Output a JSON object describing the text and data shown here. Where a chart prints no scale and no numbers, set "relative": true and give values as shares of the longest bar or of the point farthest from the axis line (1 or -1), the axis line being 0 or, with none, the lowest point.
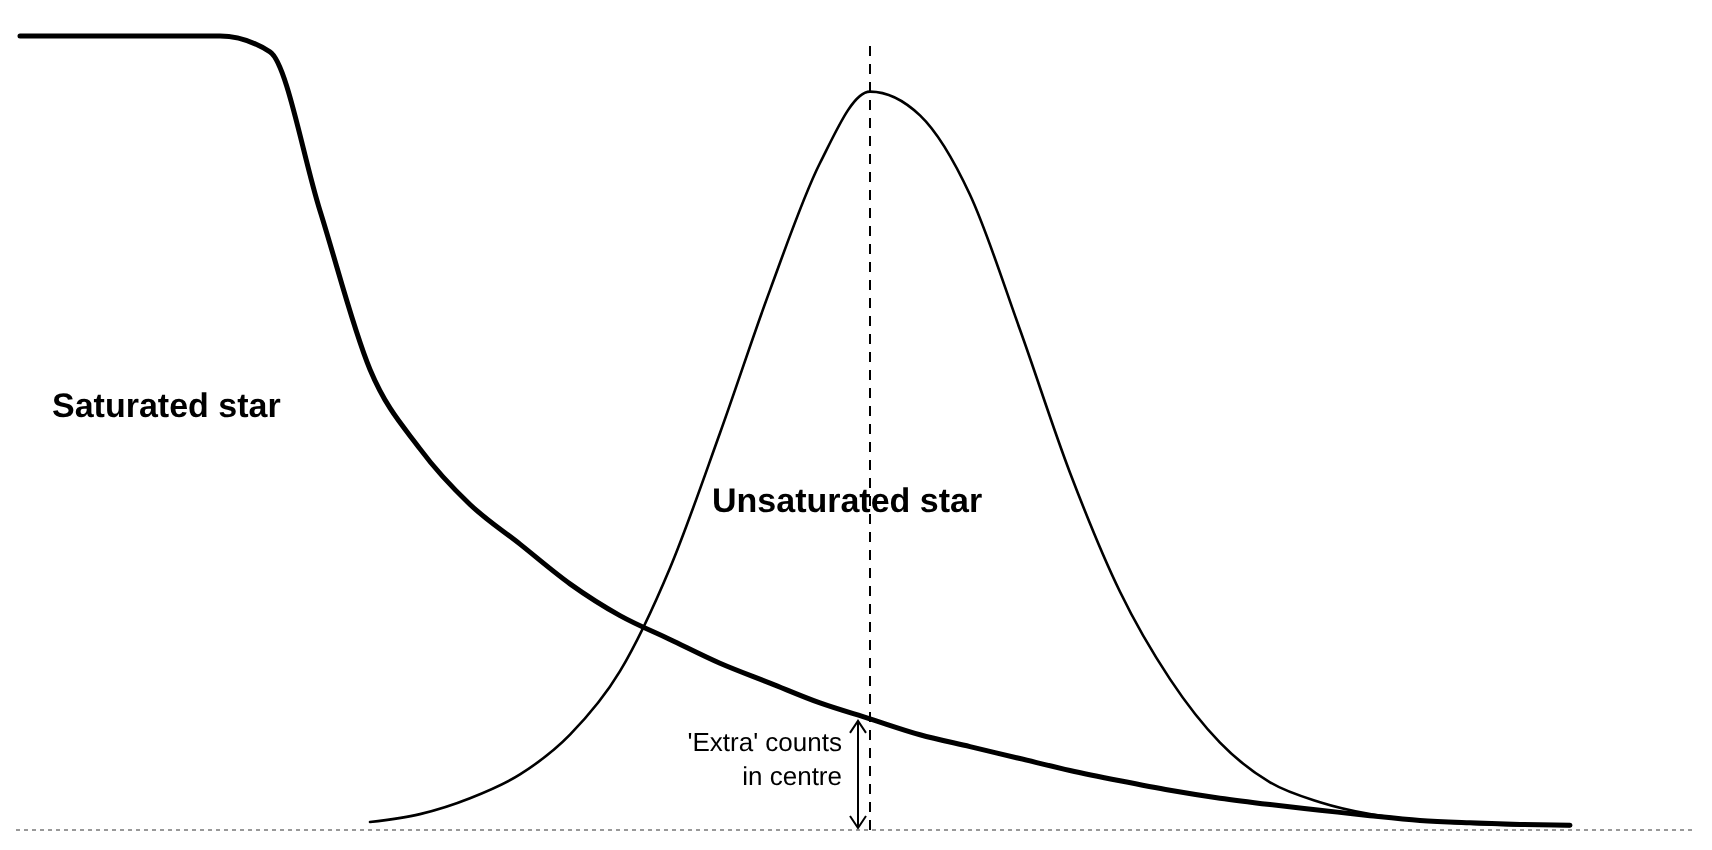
{
  "chart_data": {
    "type": "line",
    "relative": true,
    "categories": [
      null,
      null,
      null,
      null,
      null,
      null,
      null,
      null,
      null,
      null,
      null,
      null,
      null,
      null,
      null,
      null,
      null,
      null,
      null,
      null,
      null,
      null,
      null,
      null,
      null,
      null,
      null,
      null,
      null,
      null,
      null,
      null,
      null
    ],
    "series": [
      {
        "name": "Saturated star",
        "color": "#000000",
        "values": [
          1,
          1,
          1,
          1,
          1,
          0.98,
          0.78,
          0.58,
          0.48,
          0.41,
          0.36,
          0.31,
          0.27,
          0.24,
          0.21,
          0.185,
          0.16,
          0.14,
          0.12,
          0.105,
          0.09,
          0.075,
          0.062,
          0.05,
          0.04,
          0.032,
          0.025,
          0.018,
          0.012,
          0.009,
          0.007,
          0.006,
          null
        ]
      },
      {
        "name": "Unsaturated star",
        "color": "#000000",
        "values": [
          null,
          null,
          null,
          null,
          null,
          null,
          null,
          0.01,
          0.02,
          0.04,
          0.07,
          0.12,
          0.2,
          0.33,
          0.5,
          0.68,
          0.84,
          0.93,
          0.9,
          0.8,
          0.63,
          0.45,
          0.3,
          0.19,
          0.11,
          0.06,
          0.035,
          0.02,
          0.012,
          0.008,
          0.006,
          0.005,
          null
        ]
      }
    ],
    "annotations": [
      "'Extra' counts in centre"
    ]
  }
}
